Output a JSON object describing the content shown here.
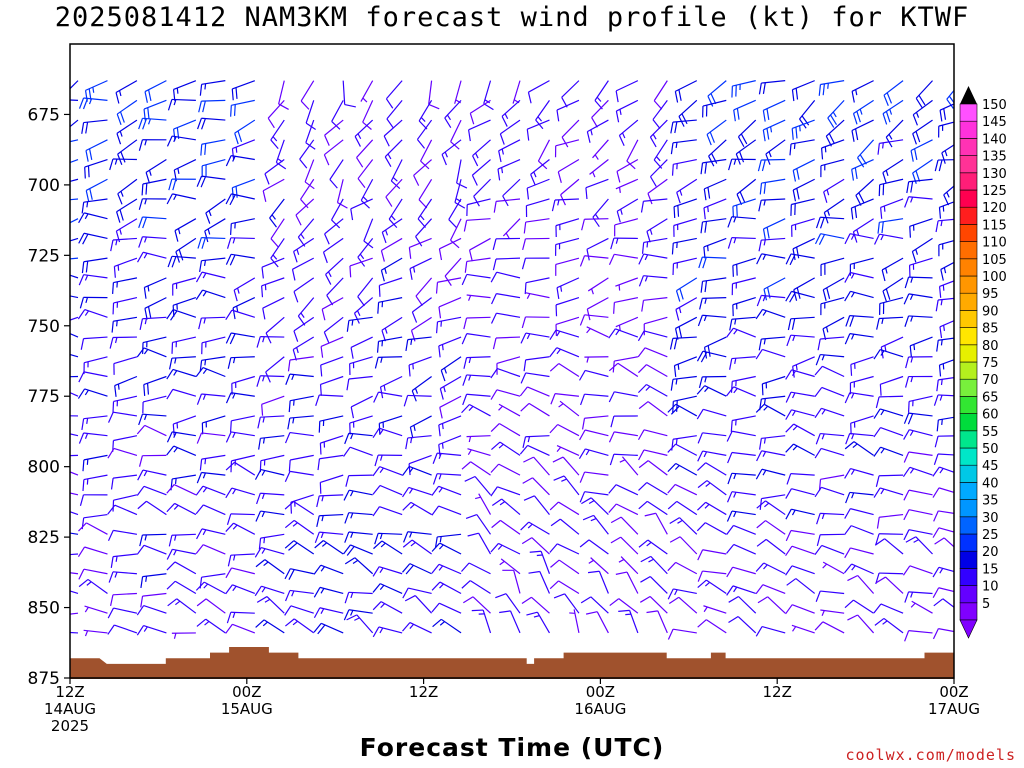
{
  "title": "2025081412 NAM3KM forecast wind profile (kt) for KTWF",
  "credit": "coolwx.com/models",
  "chart_data": {
    "type": "wind-barb profile",
    "title": "2025081412 NAM3KM forecast wind profile (kt) for KTWF",
    "xlabel": "Forecast Time (UTC)",
    "ylabel": "",
    "x_range_hours": [
      0,
      60
    ],
    "y_range_hPa": [
      650,
      875
    ],
    "y_ticks": [
      675,
      700,
      725,
      750,
      775,
      800,
      825,
      850,
      875
    ],
    "x_ticks": [
      {
        "hour": 0,
        "lines": [
          "12Z",
          "14AUG",
          "2025"
        ]
      },
      {
        "hour": 12,
        "lines": [
          "00Z",
          "15AUG"
        ]
      },
      {
        "hour": 24,
        "lines": [
          "12Z"
        ]
      },
      {
        "hour": 36,
        "lines": [
          "00Z",
          "16AUG"
        ]
      },
      {
        "hour": 48,
        "lines": [
          "12Z"
        ]
      },
      {
        "hour": 60,
        "lines": [
          "00Z",
          "17AUG"
        ]
      }
    ],
    "colorbar": {
      "labels": [
        5,
        10,
        15,
        20,
        25,
        30,
        35,
        40,
        45,
        50,
        55,
        60,
        65,
        70,
        75,
        80,
        85,
        90,
        95,
        100,
        105,
        110,
        115,
        120,
        125,
        130,
        135,
        140,
        145,
        150
      ],
      "colors": [
        "#8000ff",
        "#6400ff",
        "#3200ff",
        "#0000e6",
        "#0032ff",
        "#0064ff",
        "#0096ff",
        "#00aaff",
        "#00c8e6",
        "#00e6c8",
        "#00e68c",
        "#00dc3c",
        "#32e632",
        "#78f03c",
        "#b4f01e",
        "#e6f000",
        "#ffe600",
        "#ffc800",
        "#ffaa00",
        "#ff9600",
        "#ff8200",
        "#ff6e00",
        "#ff4600",
        "#ff1e1e",
        "#ff0050",
        "#ff1e78",
        "#ff3296",
        "#ff32b4",
        "#ff32dc",
        "#ff50ff"
      ]
    },
    "terrain_hPa": [
      {
        "hour": 0,
        "p": 868
      },
      {
        "hour": 2,
        "p": 868
      },
      {
        "hour": 2.5,
        "p": 870
      },
      {
        "hour": 6.5,
        "p": 870
      },
      {
        "hour": 6.5,
        "p": 868
      },
      {
        "hour": 9.5,
        "p": 868
      },
      {
        "hour": 9.5,
        "p": 866
      },
      {
        "hour": 10.8,
        "p": 866
      },
      {
        "hour": 10.8,
        "p": 864
      },
      {
        "hour": 13.5,
        "p": 864
      },
      {
        "hour": 13.5,
        "p": 866
      },
      {
        "hour": 15.5,
        "p": 866
      },
      {
        "hour": 15.5,
        "p": 868
      },
      {
        "hour": 31,
        "p": 868
      },
      {
        "hour": 31,
        "p": 870
      },
      {
        "hour": 31.5,
        "p": 870
      },
      {
        "hour": 31.5,
        "p": 868
      },
      {
        "hour": 33.5,
        "p": 868
      },
      {
        "hour": 33.5,
        "p": 866
      },
      {
        "hour": 40.5,
        "p": 866
      },
      {
        "hour": 40.5,
        "p": 868
      },
      {
        "hour": 43.5,
        "p": 868
      },
      {
        "hour": 43.5,
        "p": 866
      },
      {
        "hour": 44.5,
        "p": 866
      },
      {
        "hour": 44.5,
        "p": 868
      },
      {
        "hour": 58,
        "p": 868
      },
      {
        "hour": 58,
        "p": 866
      },
      {
        "hour": 60,
        "p": 866
      }
    ],
    "terrain_color": "#a0522d",
    "levels_hPa": [
      663,
      670,
      677,
      684,
      691,
      698,
      705,
      712,
      719,
      726,
      733,
      740,
      747,
      754,
      761,
      768,
      775,
      782,
      789,
      796,
      803,
      810,
      817,
      824,
      831,
      838,
      845,
      852,
      859
    ],
    "grid_hours_step": 2,
    "wind_profile_note": "",
    "series": [
      {
        "hours": [
          0,
          2,
          4,
          6,
          8,
          10,
          12
        ],
        "dir_top_deg": 250,
        "dir_low_deg": 290,
        "spd_top_kt": 20,
        "spd_low_kt": 10
      },
      {
        "hours": [
          14,
          16,
          18,
          20,
          22,
          24,
          26
        ],
        "dir_top_deg": 200,
        "dir_low_deg": 300,
        "spd_top_kt": 10,
        "spd_low_kt": 15
      },
      {
        "hours": [
          28,
          30,
          32,
          34,
          36,
          38,
          40
        ],
        "dir_top_deg": 220,
        "dir_low_deg": 330,
        "spd_top_kt": 10,
        "spd_low_kt": 10
      },
      {
        "hours": [
          42,
          44,
          46,
          48,
          50,
          52,
          54,
          56,
          58,
          60
        ],
        "dir_top_deg": 240,
        "dir_low_deg": 300,
        "spd_top_kt": 20,
        "spd_low_kt": 10
      }
    ]
  }
}
